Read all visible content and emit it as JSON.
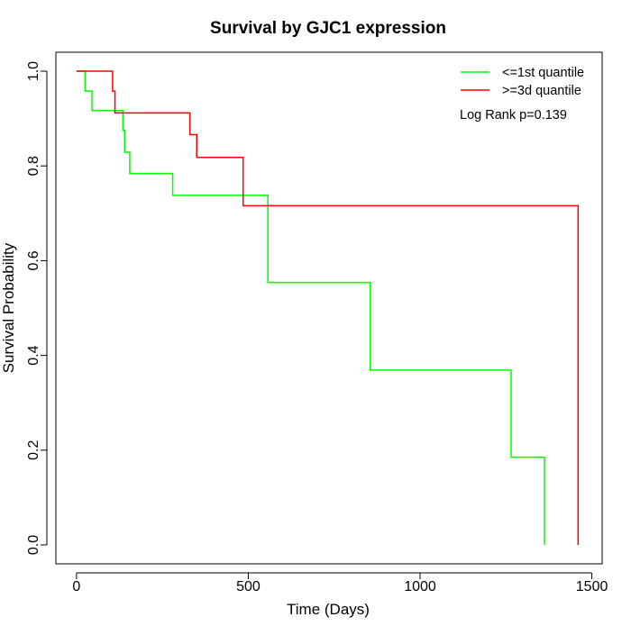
{
  "chart_data": {
    "type": "line",
    "title": "Survival by GJC1 expression",
    "xlabel": "Time (Days)",
    "ylabel": "Survival Probability",
    "xlim": [
      -60,
      1530
    ],
    "ylim": [
      -0.04,
      1.04
    ],
    "x_ticks": [
      0,
      500,
      1000,
      1500
    ],
    "y_ticks": [
      0.0,
      0.2,
      0.4,
      0.6,
      0.8,
      1.0
    ],
    "x_tick_labels": [
      "0",
      "500",
      "1000",
      "1500"
    ],
    "y_tick_labels": [
      "0.0",
      "0.2",
      "0.4",
      "0.6",
      "0.8",
      "1.0"
    ],
    "grid": false,
    "legend_position": "top-right",
    "annotation": "Log Rank p=0.139",
    "series": [
      {
        "name": "<=1st quantile",
        "color": "#00ff00",
        "step_points": [
          [
            0,
            1.0
          ],
          [
            25,
            0.958
          ],
          [
            45,
            0.917
          ],
          [
            135,
            0.875
          ],
          [
            140,
            0.829
          ],
          [
            155,
            0.784
          ],
          [
            280,
            0.738
          ],
          [
            557,
            0.554
          ],
          [
            855,
            0.369
          ],
          [
            1265,
            0.185
          ],
          [
            1362,
            0.0
          ]
        ]
      },
      {
        "name": ">=3d quantile",
        "color": "#ff0000",
        "step_points": [
          [
            0,
            1.0
          ],
          [
            105,
            0.958
          ],
          [
            112,
            0.912
          ],
          [
            330,
            0.866
          ],
          [
            350,
            0.818
          ],
          [
            485,
            0.716
          ],
          [
            1460,
            0.0
          ]
        ]
      }
    ]
  }
}
